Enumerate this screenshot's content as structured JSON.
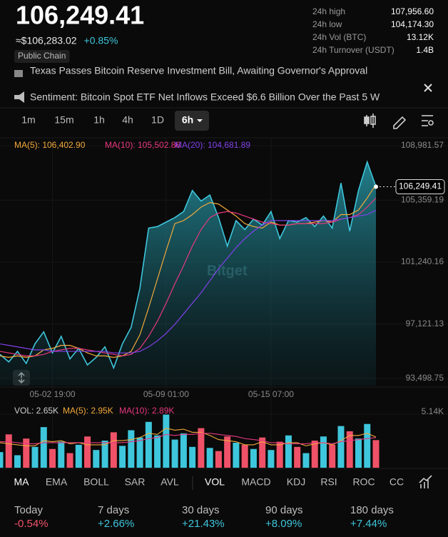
{
  "header": {
    "price": "106,249.41",
    "approx": "≈$106,283.02",
    "change": "+0.85%",
    "badge": "Public Chain",
    "stats": [
      {
        "label": "24h high",
        "value": "107,956.60"
      },
      {
        "label": "24h low",
        "value": "104,174.30"
      },
      {
        "label": "24h Vol (BTC)",
        "value": "13.12K"
      },
      {
        "label": "24h Turnover (USDT)",
        "value": "1.4B"
      }
    ]
  },
  "news": [
    "Texas Passes Bitcoin Reserve Investment Bill, Awaiting Governor's Approval",
    "Sentiment: Bitcoin Spot ETF Net Inflows Exceed $6.6 Billion Over the Past 5 W"
  ],
  "intervals": [
    "1m",
    "15m",
    "1h",
    "4h",
    "1D",
    "6h"
  ],
  "selected_interval": 5,
  "chart_data": [
    {
      "type": "line",
      "watermark": "Bitget",
      "categories": [
        null,
        null,
        null,
        null,
        null,
        null,
        "05-02 19:00",
        null,
        null,
        null,
        null,
        null,
        null,
        null,
        null,
        null,
        null,
        null,
        null,
        "05-09 01:00",
        null,
        null,
        null,
        null,
        null,
        null,
        null,
        null,
        null,
        null,
        null,
        "05-15 07:00",
        null,
        null,
        null,
        null,
        null,
        null,
        null,
        null,
        null,
        null,
        null,
        null
      ],
      "values": [
        95100,
        94600,
        95300,
        94500,
        95800,
        96600,
        95200,
        96300,
        94800,
        95500,
        94400,
        94900,
        95600,
        94200,
        95800,
        96900,
        99500,
        103500,
        103600,
        103900,
        104200,
        104600,
        106000,
        105300,
        105700,
        104200,
        102300,
        104000,
        103400,
        104100,
        103700,
        104600,
        102800,
        104000,
        103900,
        104200,
        103600,
        104300,
        103500,
        106500,
        103300,
        106000,
        107900,
        106249.41
      ],
      "color": "#3ec6dc",
      "last_label": "106,249.41",
      "series": [
        {
          "name": "MA(5): 106,402.90",
          "color": "#f2a93b",
          "values": [
            95000,
            94900,
            95000,
            94900,
            95000,
            95400,
            95500,
            95700,
            95700,
            95500,
            95200,
            95000,
            95000,
            94900,
            95000,
            95300,
            96400,
            98200,
            100100,
            102000,
            103800,
            104000,
            104400,
            104900,
            105200,
            105100,
            104700,
            104300,
            103800,
            103600,
            103500,
            103900,
            103700,
            103700,
            103800,
            103800,
            103900,
            104000,
            103900,
            104400,
            104400,
            104700,
            105500,
            106402.9
          ]
        },
        {
          "name": "MA(10): 105,502.86",
          "color": "#e8387f",
          "values": [
            95300,
            95200,
            95100,
            95000,
            95000,
            95100,
            95300,
            95400,
            95500,
            95500,
            95400,
            95300,
            95200,
            95100,
            95000,
            95100,
            95500,
            96300,
            97300,
            98500,
            99800,
            101000,
            102300,
            103400,
            104200,
            104500,
            104600,
            104500,
            104300,
            104100,
            103900,
            103800,
            103700,
            103700,
            103800,
            103800,
            103800,
            103800,
            103900,
            104100,
            104200,
            104400,
            104900,
            105502.86
          ]
        },
        {
          "name": "MA(20): 104,681.89",
          "color": "#8040e8",
          "values": [
            95800,
            95700,
            95600,
            95500,
            95400,
            95400,
            95300,
            95300,
            95300,
            95300,
            95300,
            95300,
            95300,
            95200,
            95200,
            95200,
            95300,
            95600,
            96000,
            96500,
            97100,
            97800,
            98500,
            99200,
            100000,
            100800,
            101500,
            102200,
            102800,
            103300,
            103700,
            104000,
            104000,
            104000,
            104000,
            104000,
            104000,
            104000,
            104000,
            104100,
            104200,
            104300,
            104400,
            104681.89
          ]
        }
      ],
      "ylim": [
        93498.75,
        108981.57
      ],
      "yticks": [
        {
          "value": 93498.75,
          "label": "93,498.75"
        },
        {
          "value": 97121.13,
          "label": "97,121.13"
        },
        {
          "value": 101240.16,
          "label": "101,240.16"
        },
        {
          "value": 105359.19,
          "label": "105,359.19"
        },
        {
          "value": 108981.57,
          "label": "108,981.57"
        }
      ],
      "grid": true
    },
    {
      "type": "bar",
      "colors": {
        "up": "#3ec6dc",
        "down": "#ef5268"
      },
      "series": [
        {
          "name": "VOL: 2.65K",
          "values": [
            1.5,
            3.2,
            1.2,
            2.8,
            2.0,
            3.9,
            1.8,
            2.5,
            1.4,
            2.2,
            3.0,
            1.7,
            2.6,
            3.4,
            2.1,
            3.6,
            2.9,
            4.4,
            3.1,
            5.1,
            2.7,
            3.3,
            2.0,
            3.8,
            1.9,
            1.6,
            3.0,
            2.4,
            2.2,
            1.8,
            2.9,
            1.7,
            2.5,
            3.1,
            2.0,
            1.4,
            2.6,
            3.0,
            2.2,
            4.0,
            3.5,
            2.8,
            4.2,
            2.65
          ]
        },
        {
          "name": "MA(5): 2.95K",
          "color": "#f2a93b",
          "values": [
            2.4,
            2.3,
            2.2,
            2.1,
            2.1,
            2.6,
            2.5,
            2.6,
            2.3,
            2.4,
            2.2,
            2.2,
            2.2,
            2.6,
            2.6,
            2.7,
            2.9,
            3.3,
            3.2,
            3.8,
            3.6,
            3.7,
            3.4,
            3.4,
            3.1,
            2.7,
            2.6,
            2.5,
            2.2,
            2.2,
            2.5,
            2.2,
            2.2,
            2.4,
            2.4,
            2.1,
            2.3,
            2.4,
            2.2,
            2.6,
            3.1,
            3.1,
            3.3,
            2.95
          ]
        },
        {
          "name": "MA(10): 2.89K",
          "color": "#e8387f",
          "values": [
            2.5,
            2.5,
            2.4,
            2.3,
            2.3,
            2.4,
            2.4,
            2.4,
            2.4,
            2.4,
            2.4,
            2.4,
            2.4,
            2.4,
            2.4,
            2.5,
            2.6,
            2.8,
            2.9,
            3.2,
            3.1,
            3.2,
            3.2,
            3.3,
            3.3,
            3.2,
            3.1,
            3.0,
            2.8,
            2.7,
            2.6,
            2.4,
            2.4,
            2.3,
            2.3,
            2.3,
            2.4,
            2.4,
            2.3,
            2.5,
            2.6,
            2.7,
            2.8,
            2.89
          ]
        }
      ],
      "ylim": [
        0,
        5.14
      ],
      "yticks": [
        {
          "value": 5.14,
          "label": "5.14K"
        }
      ]
    }
  ],
  "tabs": {
    "main": [
      "MA",
      "EMA",
      "BOLL",
      "SAR",
      "AVL"
    ],
    "sub": [
      "VOL",
      "MACD",
      "KDJ",
      "RSI",
      "ROC",
      "CC"
    ]
  },
  "performance": [
    {
      "label": "Today",
      "value": "-0.54%",
      "color": "#ef5268"
    },
    {
      "label": "7 days",
      "value": "+2.66%",
      "color": "#3ec6dc"
    },
    {
      "label": "30 days",
      "value": "+21.43%",
      "color": "#3ec6dc"
    },
    {
      "label": "90 days",
      "value": "+8.09%",
      "color": "#3ec6dc"
    },
    {
      "label": "180 days",
      "value": "+7.44%",
      "color": "#3ec6dc"
    }
  ]
}
